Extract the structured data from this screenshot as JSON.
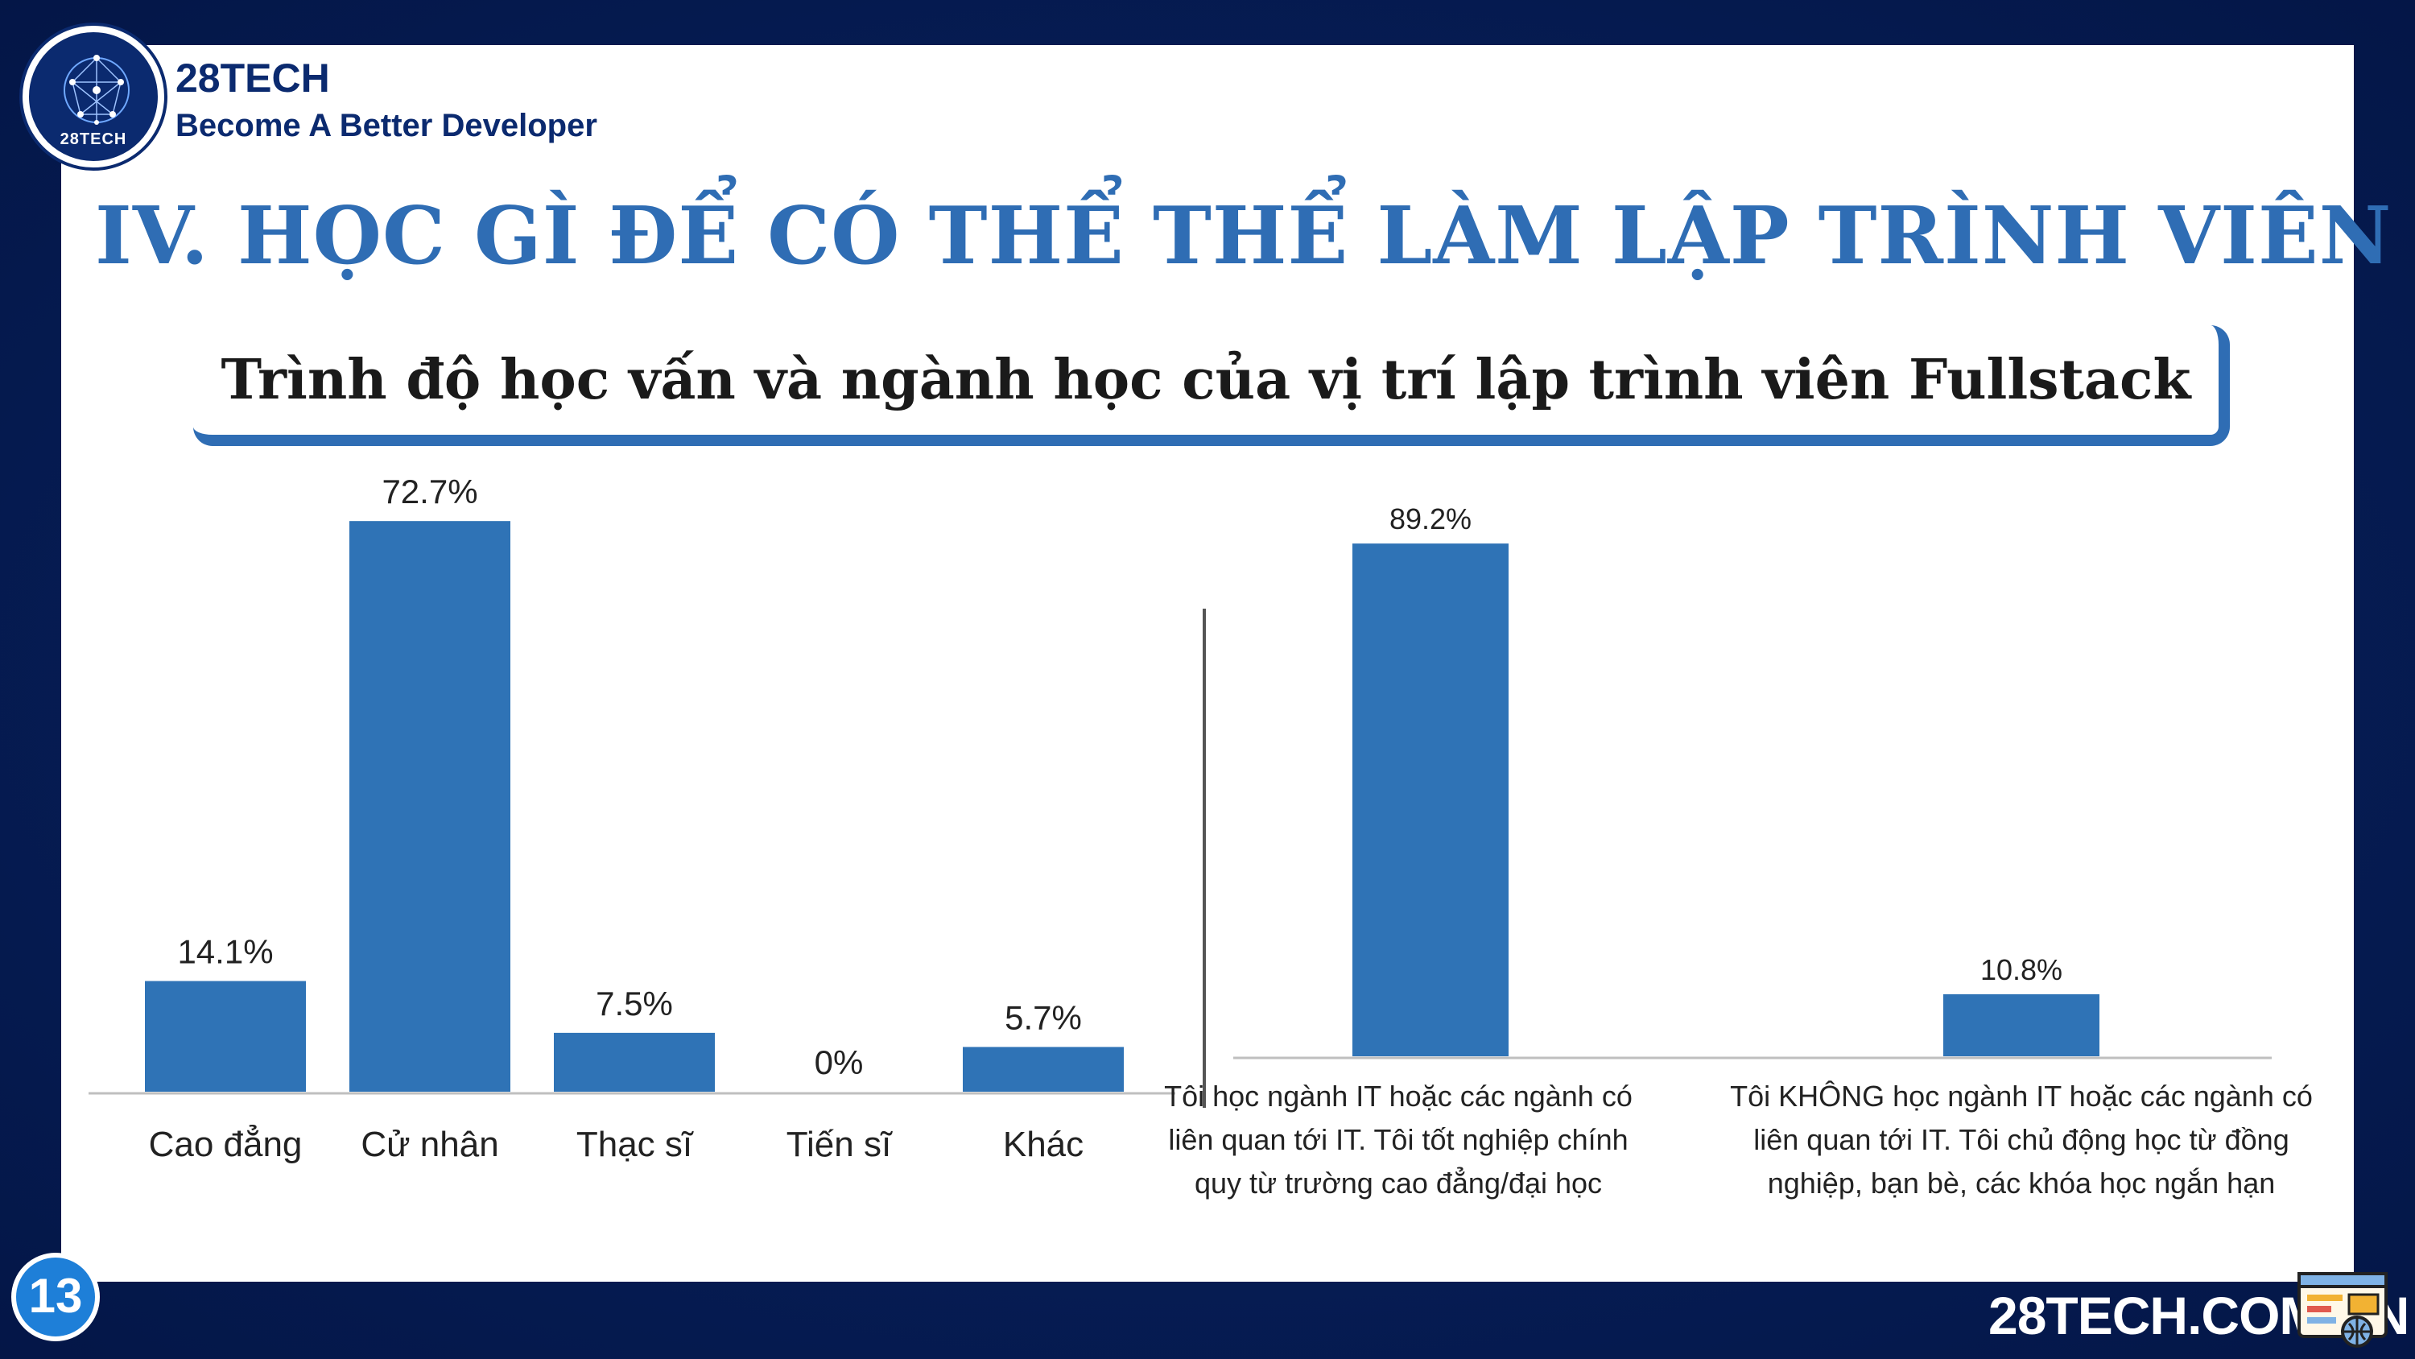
{
  "brand": {
    "name": "28TECH",
    "tagline": "Become A Better Developer",
    "logo_text": "28TECH",
    "primary_color": "#0b2a6f",
    "accent_color": "#2f6db4"
  },
  "slide": {
    "title": "IV. HỌC GÌ ĐỂ CÓ THỂ THỂ LÀM LẬP TRÌNH VIÊN",
    "subtitle": "Trình độ học vấn và ngành học của vị trí lập trình viên Fullstack",
    "page_number": "13",
    "site_url": "28TECH.COM.VN"
  },
  "icons": {
    "logo": "network-globe-icon",
    "footer": "web-browser-icon"
  },
  "chart_data": [
    {
      "type": "bar",
      "categories": [
        "Cao đẳng",
        "Cử nhân",
        "Thạc sĩ",
        "Tiến sĩ",
        "Khác"
      ],
      "values": [
        14.1,
        72.7,
        7.5,
        0,
        5.7
      ],
      "value_labels": [
        "14.1%",
        "72.7%",
        "7.5%",
        "0%",
        "5.7%"
      ],
      "ylim": [
        0,
        80
      ],
      "grid": false,
      "bar_color": "#2f73b6"
    },
    {
      "type": "bar",
      "categories": [
        [
          "Tôi học ngành IT hoặc các ngành có",
          "liên quan tới IT. Tôi tốt nghiệp chính",
          "quy từ trường cao đẳng/đại học"
        ],
        [
          "Tôi KHÔNG học ngành IT hoặc các ngành có",
          "liên quan tới IT. Tôi chủ động học từ đồng",
          "nghiệp, bạn bè, các khóa học ngắn hạn"
        ]
      ],
      "values": [
        89.2,
        10.8
      ],
      "value_labels": [
        "89.2%",
        "10.8%"
      ],
      "ylim": [
        0,
        100
      ],
      "grid": false,
      "bar_color": "#2f73b6"
    }
  ]
}
